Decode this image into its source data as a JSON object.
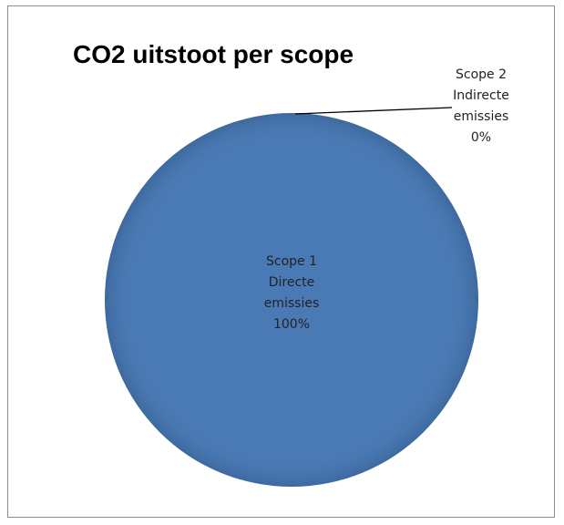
{
  "chart_data": {
    "type": "pie",
    "title": "CO2 uitstoot per scope",
    "slices": [
      {
        "label_lines": [
          "Scope 1",
          "Directe",
          "emissies"
        ],
        "value": 100,
        "percent_label": "100%",
        "color": "#4a7ab5"
      },
      {
        "label_lines": [
          "Scope 2",
          "Indirecte",
          "emissies"
        ],
        "value": 0,
        "percent_label": "0%",
        "color": "#c0504d"
      }
    ],
    "legend": "none"
  }
}
